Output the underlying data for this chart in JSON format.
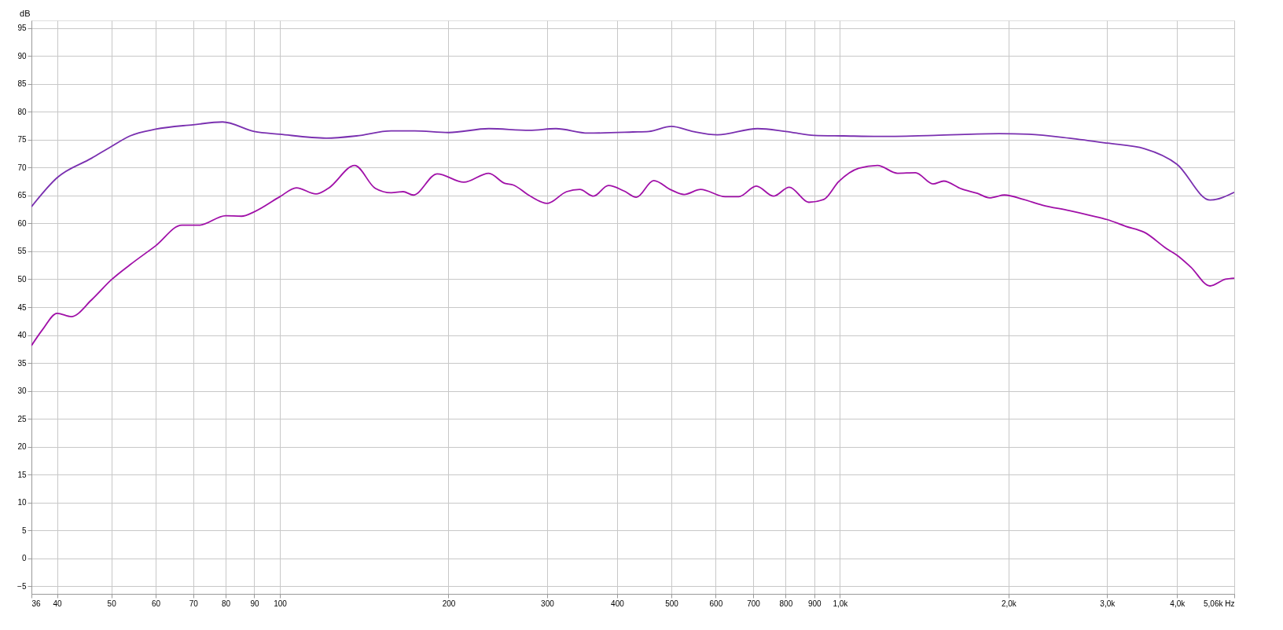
{
  "chart_data": {
    "type": "line",
    "ylabel": "dB",
    "log": "x",
    "grid": true,
    "marker": "none",
    "line_style": "solid",
    "xlim": [
      36,
      5060
    ],
    "ylim": [
      -6.4,
      96.4
    ],
    "xticks": [
      36,
      40,
      50,
      60,
      70,
      80,
      90,
      100,
      200,
      300,
      400,
      500,
      600,
      700,
      800,
      900,
      {
        "value": 1000,
        "label": "1,0k"
      },
      {
        "value": 2000,
        "label": "2,0k"
      },
      {
        "value": 3000,
        "label": "3,0k"
      },
      {
        "value": 4000,
        "label": "4,0k"
      },
      {
        "value": 5060,
        "label": "5,06k Hz"
      }
    ],
    "yticks": [
      -5,
      0,
      5,
      10,
      15,
      20,
      25,
      30,
      35,
      40,
      45,
      50,
      55,
      60,
      65,
      70,
      75,
      80,
      85,
      90,
      95
    ],
    "series": [
      {
        "color": "#7a30b0",
        "x": [
          36,
          40,
          46.1,
          50,
          54,
          60,
          70,
          79,
          90,
          100,
          121,
          137,
          158,
          174,
          200,
          236,
          279,
          311,
          355,
          427,
          456,
          500,
          546,
          604,
          713,
          800,
          900,
          1015,
          1173,
          1474,
          1925,
          2175,
          2569,
          3000,
          3500,
          4000,
          4580,
          5060
        ],
        "values": [
          63,
          68.2,
          71.7,
          73.8,
          75.7,
          76.9,
          77.7,
          78.2,
          76.5,
          76,
          75.3,
          75.7,
          76.6,
          76.6,
          76.3,
          77,
          76.7,
          77,
          76.2,
          76.4,
          76.5,
          77.4,
          76.5,
          75.9,
          77,
          76.5,
          75.8,
          75.7,
          75.6,
          75.8,
          76.1,
          76,
          75.3,
          74.4,
          73.4,
          70.6,
          64.2,
          65.6
        ]
      },
      {
        "color": "#a010a8",
        "x": [
          36,
          37.7,
          40,
          42.4,
          46.1,
          50,
          54,
          60,
          66.8,
          71.8,
          80,
          85.4,
          90,
          100,
          107,
          116,
          122,
          136,
          148,
          158,
          166,
          173,
          191,
          213,
          236,
          252,
          261,
          279,
          300,
          325,
          343,
          363,
          386,
          412,
          433,
          465,
          500,
          527,
          564,
          624,
          660,
          709,
          761,
          812,
          880,
          936,
          995,
          1081,
          1167,
          1268,
          1364,
          1466,
          1532,
          1648,
          1760,
          1850,
          1967,
          2127,
          2297,
          2569,
          2812,
          3000,
          3238,
          3500,
          3830,
          4000,
          4230,
          4580,
          4880,
          5060
        ],
        "values": [
          38.1,
          41,
          43.9,
          43.3,
          46.3,
          49.9,
          52.6,
          56,
          59.7,
          59.7,
          61.4,
          61.3,
          62.1,
          64.8,
          66.4,
          65.3,
          66.3,
          70.4,
          66.3,
          65.5,
          65.7,
          65.1,
          68.9,
          67.4,
          69,
          67.2,
          66.9,
          65,
          63.6,
          65.7,
          66.1,
          64.9,
          66.8,
          65.8,
          64.7,
          67.7,
          66,
          65.2,
          66.1,
          64.8,
          64.8,
          66.7,
          64.9,
          66.5,
          63.8,
          64.3,
          67.5,
          69.9,
          70.4,
          69,
          69.1,
          67.1,
          67.6,
          66.2,
          65.4,
          64.6,
          65.1,
          64.3,
          63.3,
          62.3,
          61.4,
          60.7,
          59.5,
          58.4,
          55.5,
          54.3,
          52.2,
          48.8,
          50,
          50.2
        ]
      }
    ]
  }
}
